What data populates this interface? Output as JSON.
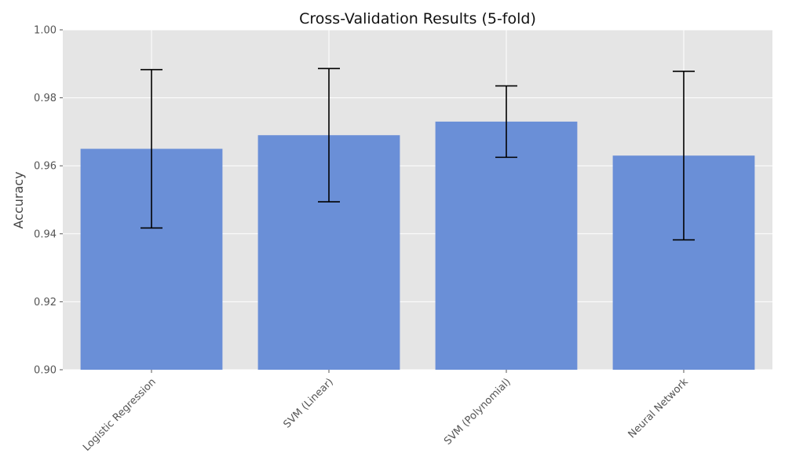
{
  "chart_data": {
    "type": "bar",
    "title": "Cross-Validation Results (5-fold)",
    "xlabel": "",
    "ylabel": "Accuracy",
    "ylim": [
      0.9,
      1.0
    ],
    "yticks": [
      "0.90",
      "0.92",
      "0.94",
      "0.96",
      "0.98",
      "1.00"
    ],
    "grid": true,
    "categories": [
      "Logistic Regression",
      "SVM (Linear)",
      "SVM (Polynomial)",
      "Neural Network"
    ],
    "values": [
      0.965,
      0.969,
      0.973,
      0.963
    ],
    "error_bars": [
      0.0233,
      0.0196,
      0.0105,
      0.0248
    ],
    "colors": {
      "bar": "#6a8fd7",
      "plot_background": "#e5e5e5",
      "grid": "#ffffff",
      "error_bar": "#000000"
    }
  }
}
